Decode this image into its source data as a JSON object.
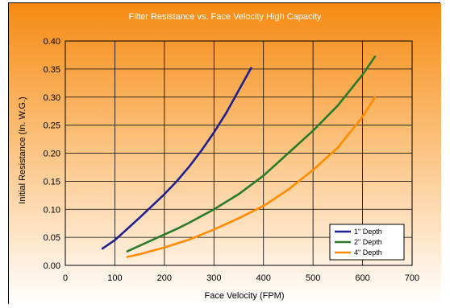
{
  "chart_data": {
    "type": "line",
    "title": "Filter Resistance vs. Face Velocity High Capacity",
    "xlabel": "Face Velocity (FPM)",
    "ylabel": "Initial Resistance (In. W.G.)",
    "xlim": [
      0,
      700
    ],
    "ylim": [
      0,
      0.4
    ],
    "x_ticks": [
      "0",
      "100",
      "200",
      "300",
      "400",
      "500",
      "600",
      "700"
    ],
    "y_ticks": [
      "0.00",
      "0.05",
      "0.10",
      "0.15",
      "0.20",
      "0.25",
      "0.30",
      "0.35",
      "0.40"
    ],
    "grid": true,
    "legend_position": "bottom-right",
    "series": [
      {
        "name": "1\" Depth",
        "color": "#1f1f8f",
        "x": [
          75,
          100,
          125,
          150,
          175,
          200,
          225,
          250,
          275,
          300,
          325,
          350,
          375
        ],
        "y": [
          0.03,
          0.045,
          0.065,
          0.085,
          0.106,
          0.127,
          0.15,
          0.176,
          0.205,
          0.237,
          0.272,
          0.312,
          0.352
        ]
      },
      {
        "name": "2\" Depth",
        "color": "#2a7a2a",
        "x": [
          125,
          150,
          175,
          200,
          225,
          250,
          300,
          350,
          400,
          450,
          500,
          550,
          600,
          625
        ],
        "y": [
          0.025,
          0.035,
          0.045,
          0.055,
          0.065,
          0.076,
          0.1,
          0.127,
          0.16,
          0.2,
          0.24,
          0.285,
          0.34,
          0.372
        ]
      },
      {
        "name": "4\" Depth",
        "color": "#ff8c00",
        "x": [
          125,
          150,
          200,
          250,
          300,
          350,
          400,
          450,
          500,
          550,
          600,
          625
        ],
        "y": [
          0.015,
          0.02,
          0.032,
          0.046,
          0.064,
          0.084,
          0.106,
          0.135,
          0.17,
          0.21,
          0.265,
          0.3
        ]
      }
    ]
  }
}
